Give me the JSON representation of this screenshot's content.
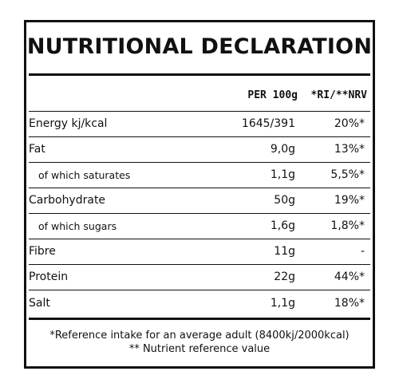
{
  "title": "NUTRITIONAL DECLARATION",
  "columns": {
    "per": "PER 100g",
    "ri": "*RI/**NRV"
  },
  "rows": [
    {
      "label": "Energy kj/kcal",
      "per": "1645/391",
      "ri": "20%*",
      "sub": false
    },
    {
      "label": "Fat",
      "per": "9,0g",
      "ri": "13%*",
      "sub": false
    },
    {
      "label": "of which saturates",
      "per": "1,1g",
      "ri": "5,5%*",
      "sub": true
    },
    {
      "label": "Carbohydrate",
      "per": "50g",
      "ri": "19%*",
      "sub": false
    },
    {
      "label": "of which sugars",
      "per": "1,6g",
      "ri": "1,8%*",
      "sub": true
    },
    {
      "label": "Fibre",
      "per": "11g",
      "ri": "-",
      "sub": false
    },
    {
      "label": "Protein",
      "per": "22g",
      "ri": "44%*",
      "sub": false
    },
    {
      "label": "Salt",
      "per": "1,1g",
      "ri": "18%*",
      "sub": false
    }
  ],
  "footnotes": {
    "reference": "*Reference intake for an average adult (8400kj/2000kcal)",
    "nrv": "** Nutrient reference value"
  }
}
